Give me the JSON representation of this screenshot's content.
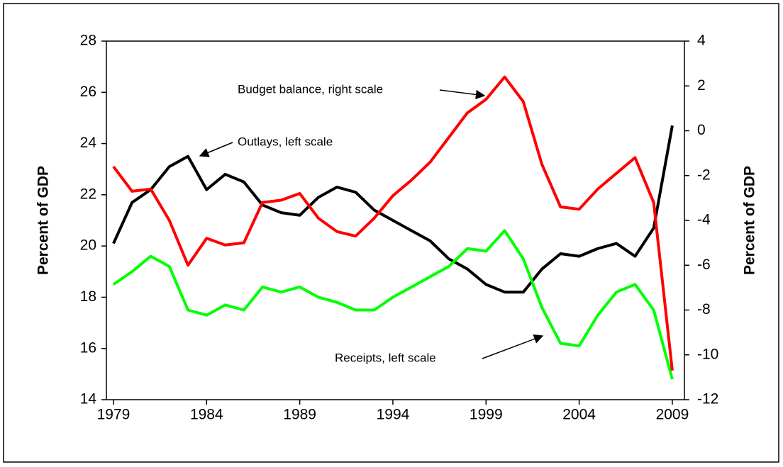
{
  "chart_data": {
    "type": "line",
    "x": [
      1979,
      1980,
      1981,
      1982,
      1983,
      1984,
      1985,
      1986,
      1987,
      1988,
      1989,
      1990,
      1991,
      1992,
      1993,
      1994,
      1995,
      1996,
      1997,
      1998,
      1999,
      2000,
      2001,
      2002,
      2003,
      2004,
      2005,
      2006,
      2007,
      2008,
      2009
    ],
    "series": [
      {
        "name": "Outlays",
        "color": "#000000",
        "values": [
          20.1,
          21.7,
          22.2,
          23.1,
          23.5,
          22.2,
          22.8,
          22.5,
          21.6,
          21.3,
          21.2,
          21.9,
          22.3,
          22.1,
          21.4,
          21.0,
          20.6,
          20.2,
          19.5,
          19.1,
          18.5,
          18.2,
          18.2,
          19.1,
          19.7,
          19.6,
          19.9,
          20.1,
          19.6,
          20.7,
          24.7
        ]
      },
      {
        "name": "Receipts",
        "color": "#00ff00",
        "values": [
          18.5,
          19.0,
          19.6,
          19.2,
          17.5,
          17.3,
          17.7,
          17.5,
          18.4,
          18.2,
          18.4,
          18.0,
          17.8,
          17.5,
          17.5,
          18.0,
          18.4,
          18.8,
          19.2,
          19.9,
          19.8,
          20.6,
          19.5,
          17.6,
          16.2,
          16.1,
          17.3,
          18.2,
          18.5,
          17.5,
          14.8
        ]
      },
      {
        "name": "Budget balance",
        "color": "#ff0000",
        "axis": "y2",
        "values": [
          -1.6,
          -2.7,
          -2.6,
          -4.0,
          -6.0,
          -4.8,
          -5.1,
          -5.0,
          -3.2,
          -3.1,
          -2.8,
          -3.9,
          -4.5,
          -4.7,
          -3.9,
          -2.9,
          -2.2,
          -1.4,
          -0.3,
          0.8,
          1.4,
          2.4,
          1.3,
          -1.5,
          -3.4,
          -3.5,
          -2.6,
          -1.9,
          -1.2,
          -3.2,
          -10.7
        ]
      }
    ],
    "y_label": "Percent of GDP",
    "y2_label": "Percent of GDP",
    "annotations": [
      "Budget balance, right scale",
      "Outlays, left scale",
      "Receipts, left scale"
    ],
    "xlim": [
      1978.62,
      2009.65
    ],
    "xticks": [
      1979,
      1984,
      1989,
      1994,
      1999,
      2004,
      2009
    ],
    "ylim": [
      14,
      28
    ],
    "yticks": [
      14,
      16,
      18,
      20,
      22,
      24,
      26,
      28
    ],
    "y2lim": [
      -12,
      4
    ],
    "y2ticks": [
      -12,
      -10,
      -8,
      -6,
      -4,
      -2,
      0,
      2,
      4
    ],
    "grid": false
  }
}
